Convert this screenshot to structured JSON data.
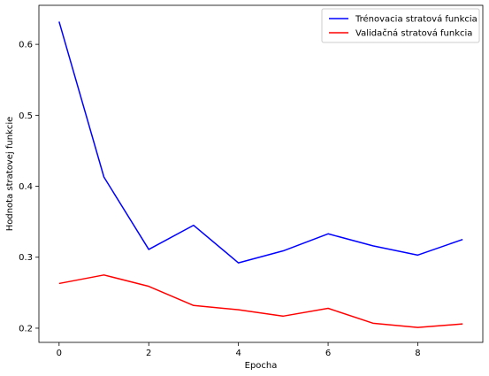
{
  "chart_data": {
    "type": "line",
    "title": "",
    "xlabel": "Epocha",
    "ylabel": "Hodnota stratovej funkcie",
    "x": [
      0,
      1,
      2,
      3,
      4,
      5,
      6,
      7,
      8,
      9
    ],
    "xticks": [
      0,
      2,
      4,
      6,
      8
    ],
    "yticks": [
      0.2,
      0.3,
      0.4,
      0.5,
      0.6
    ],
    "xlim": [
      -0.45,
      9.45
    ],
    "ylim": [
      0.18,
      0.655
    ],
    "grid": false,
    "legend_position": "top-right",
    "series": [
      {
        "name": "Trénovacia stratová funkcia",
        "color": "#0000ff",
        "values": [
          0.632,
          0.413,
          0.311,
          0.345,
          0.292,
          0.309,
          0.333,
          0.316,
          0.303,
          0.325
        ]
      },
      {
        "name": "Validačná stratová funkcia",
        "color": "#ff0000",
        "values": [
          0.263,
          0.275,
          0.259,
          0.232,
          0.226,
          0.217,
          0.228,
          0.207,
          0.201,
          0.206
        ]
      }
    ]
  }
}
